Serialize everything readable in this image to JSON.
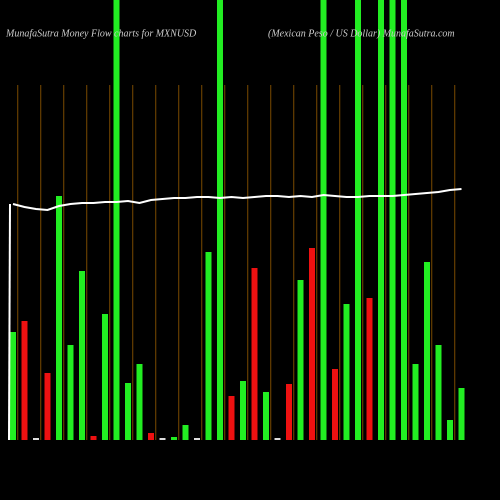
{
  "chart_data": {
    "type": "bar",
    "title": "MunafaSutra  Money Flow  charts for MXNUSD",
    "subtitle": "(Mexican  Peso / US Dollar)  MunafaSutra.com",
    "categories": [
      null,
      null,
      null,
      null,
      null,
      null,
      null,
      null,
      null,
      null,
      null,
      null,
      null,
      null,
      null,
      null,
      null,
      null,
      null,
      null,
      null,
      null,
      null,
      null,
      null,
      null,
      null,
      null,
      null,
      null,
      null,
      null,
      null,
      null,
      null,
      null,
      null,
      null,
      null,
      null
    ],
    "values": [
      108,
      119,
      2,
      67,
      244,
      95,
      169,
      4,
      126,
      440,
      57,
      76,
      7,
      2,
      3,
      15,
      2,
      188,
      440,
      44,
      59,
      172,
      48,
      2,
      56,
      160,
      192,
      440,
      71,
      136,
      440,
      142,
      440,
      440,
      440,
      76,
      178,
      95,
      20,
      52
    ],
    "colors": [
      "#22ee22",
      "#ee1111",
      "#dddddd",
      "#ee1111",
      "#22ee22",
      "#22ee22",
      "#22ee22",
      "#ee1111",
      "#22ee22",
      "#22ee22",
      "#22ee22",
      "#22ee22",
      "#ee1111",
      "#dddddd",
      "#22ee22",
      "#22ee22",
      "#dddddd",
      "#22ee22",
      "#22ee22",
      "#ee1111",
      "#22ee22",
      "#ee1111",
      "#22ee22",
      "#dddddd",
      "#ee1111",
      "#22ee22",
      "#ee1111",
      "#22ee22",
      "#ee1111",
      "#22ee22",
      "#22ee22",
      "#ee1111",
      "#22ee22",
      "#22ee22",
      "#22ee22",
      "#22ee22",
      "#22ee22",
      "#22ee22",
      "#22ee22",
      "#22ee22"
    ],
    "line": {
      "color": "#ffffff",
      "values": [
        236,
        233,
        231,
        230,
        234,
        236,
        237,
        237,
        238,
        238,
        239,
        237,
        240,
        241,
        242,
        242,
        243,
        243,
        242,
        243,
        242,
        243,
        244,
        244,
        243,
        244,
        243,
        245,
        244,
        243,
        243,
        244,
        244,
        244,
        245,
        246,
        247,
        248,
        250,
        251
      ]
    },
    "ylim": [
      0,
      440
    ]
  }
}
